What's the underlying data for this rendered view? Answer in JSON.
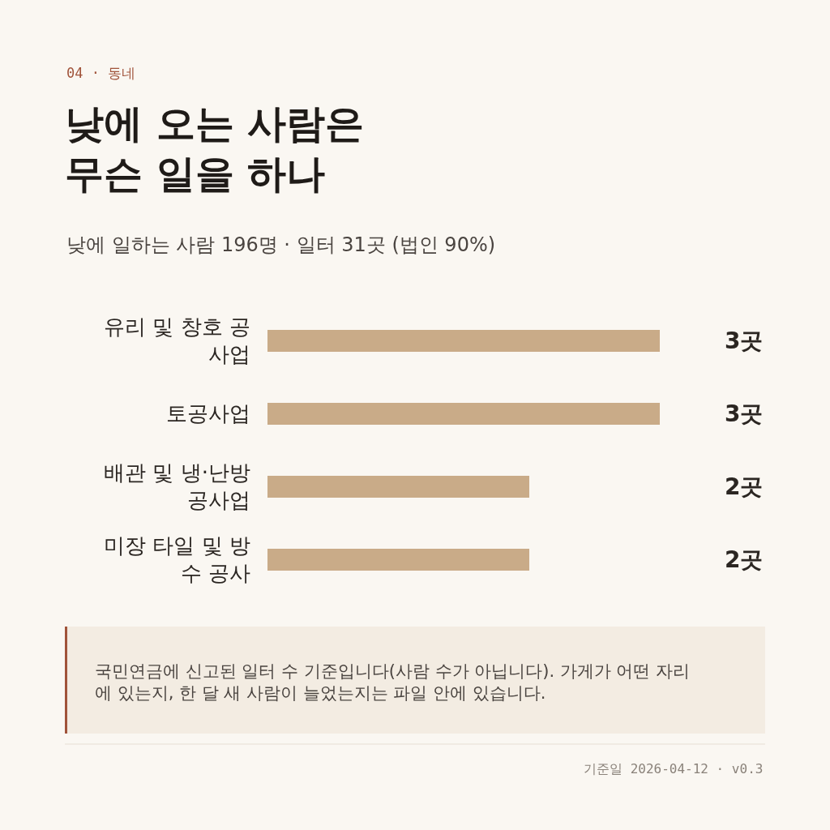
{
  "chart_data": {
    "type": "bar",
    "orientation": "horizontal",
    "title": "낮에 오는 사람은\n무슨 일을 하나",
    "subtitle": "낮에 일하는 사람 196명 · 일터 31곳 (법인 90%)",
    "categories": [
      "유리 및 창호 공사업",
      "토공사업",
      "배관 및 냉·난방 공사업",
      "미장 타일 및 방수 공사"
    ],
    "values": [
      3,
      3,
      2,
      2
    ],
    "value_labels": [
      "3곳",
      "3곳",
      "2곳",
      "2곳"
    ],
    "color": "#c9ab88",
    "grid": false,
    "legend": false,
    "annotations": [
      "04 · 동네",
      "국민연금에 신고된 일터 수 기준입니다(사람 수가 아닙니다). 가게가 어떤 자리에 있는지, 한 달 새 사람이 늘었는지는 파일 안에 있습니다.",
      "기준일 2026-04-12 · v0.3"
    ]
  }
}
